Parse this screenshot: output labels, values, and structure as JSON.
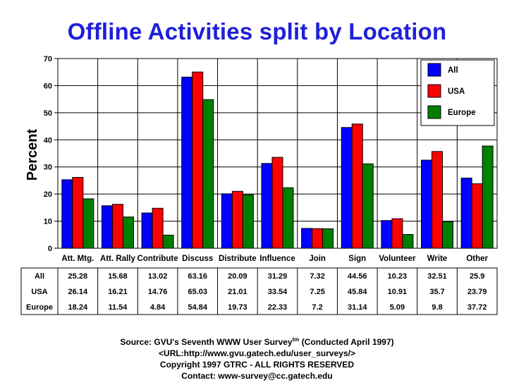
{
  "chart_data": {
    "type": "bar",
    "title": "Offline Activities split by Location",
    "ylabel": "Percent",
    "xlabel": "",
    "ylim": [
      0,
      70
    ],
    "yticks": [
      "0",
      "10",
      "20",
      "30",
      "40",
      "50",
      "60",
      "70"
    ],
    "grid": true,
    "legend_position": "top-right",
    "categories": [
      "Att. Mtg.",
      "Att. Rally",
      "Contribute",
      "Discuss",
      "Distribute",
      "Influence",
      "Join",
      "Sign",
      "Volunteer",
      "Write",
      "Other"
    ],
    "series": [
      {
        "name": "All",
        "color": "#0000ff",
        "values": [
          25.28,
          15.68,
          13.02,
          63.16,
          20.09,
          31.29,
          7.32,
          44.56,
          10.23,
          32.51,
          25.9
        ],
        "labels": [
          "25.28",
          "15.68",
          "13.02",
          "63.16",
          "20.09",
          "31.29",
          "7.32",
          "44.56",
          "10.23",
          "32.51",
          "25.9"
        ]
      },
      {
        "name": "USA",
        "color": "#ff0000",
        "values": [
          26.14,
          16.21,
          14.76,
          65.03,
          21.01,
          33.54,
          7.25,
          45.84,
          10.91,
          35.7,
          23.79
        ],
        "labels": [
          "26.14",
          "16.21",
          "14.76",
          "65.03",
          "21.01",
          "33.54",
          "7.25",
          "45.84",
          "10.91",
          "35.7",
          "23.79"
        ]
      },
      {
        "name": "Europe",
        "color": "#008000",
        "values": [
          18.24,
          11.54,
          4.84,
          54.84,
          19.73,
          22.33,
          7.2,
          31.14,
          5.09,
          9.8,
          37.72
        ],
        "labels": [
          "18.24",
          "11.54",
          "4.84",
          "54.84",
          "19.73",
          "22.33",
          "7.2",
          "31.14",
          "5.09",
          "9.8",
          "37.72"
        ]
      }
    ]
  },
  "footer": {
    "source_prefix": "Source: GVU's Seventh WWW User Survey",
    "source_tm": "tm",
    "source_suffix": " (Conducted April 1997)",
    "url": "<URL:http://www.gvu.gatech.edu/user_surveys/>",
    "copyright": "Copyright 1997 GTRC - ALL RIGHTS RESERVED",
    "contact": "Contact: www-survey@cc.gatech.edu"
  }
}
